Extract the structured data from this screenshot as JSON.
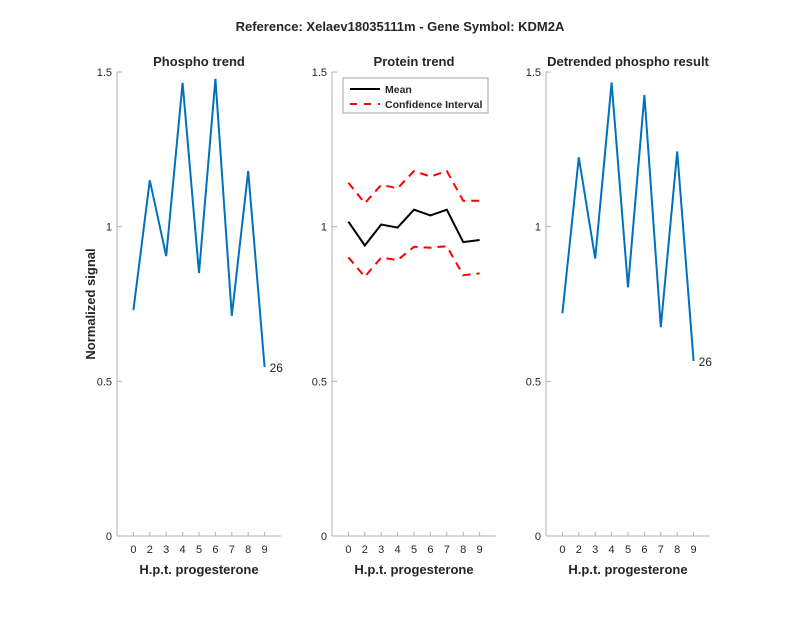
{
  "suptitle": "Reference:  Xelaev18035111m - Gene Symbol:  KDM2A",
  "colors": {
    "phospho": "#0072BD",
    "mean": "#000000",
    "ci": "#FF0000",
    "axis": "#262626",
    "spine": "#b0b0b0"
  },
  "chart_data": [
    {
      "type": "line",
      "title": "Phospho trend",
      "xlabel": "H.p.t. progesterone",
      "ylabel": "Normalized signal",
      "ylim": [
        0,
        1.5
      ],
      "yticks": [
        "0",
        "0.5",
        "1",
        "1.5"
      ],
      "categories": [
        "0",
        "2",
        "3",
        "4",
        "5",
        "6",
        "7",
        "8",
        "9"
      ],
      "series": [
        {
          "name": "Phospho",
          "values": [
            0.73,
            1.15,
            0.905,
            1.465,
            0.85,
            1.478,
            0.712,
            1.18,
            0.546
          ]
        }
      ],
      "end_label": "26"
    },
    {
      "type": "line",
      "title": "Protein trend",
      "xlabel": "H.p.t. progesterone",
      "ylabel": "",
      "ylim": [
        0,
        1.5
      ],
      "yticks": [
        "0",
        "0.5",
        "1",
        "1.5"
      ],
      "categories": [
        "0",
        "2",
        "3",
        "4",
        "5",
        "6",
        "7",
        "8",
        "9"
      ],
      "legend": {
        "placement": "top-left",
        "entries": [
          "Mean",
          "Confidence Interval"
        ]
      },
      "series": [
        {
          "name": "Mean",
          "values": [
            1.016,
            0.939,
            1.007,
            0.997,
            1.055,
            1.036,
            1.055,
            0.95,
            0.957
          ]
        },
        {
          "name": "Confidence Interval (upper)",
          "values": [
            1.142,
            1.076,
            1.135,
            1.124,
            1.18,
            1.162,
            1.18,
            1.084,
            1.084
          ]
        },
        {
          "name": "Confidence Interval (lower)",
          "values": [
            0.901,
            0.838,
            0.9,
            0.892,
            0.935,
            0.932,
            0.937,
            0.843,
            0.849
          ]
        }
      ]
    },
    {
      "type": "line",
      "title": "Detrended phospho result",
      "xlabel": "H.p.t. progesterone",
      "ylabel": "",
      "ylim": [
        0,
        1.5
      ],
      "yticks": [
        "0",
        "0.5",
        "1",
        "1.5"
      ],
      "categories": [
        "0",
        "2",
        "3",
        "4",
        "5",
        "6",
        "7",
        "8",
        "9"
      ],
      "series": [
        {
          "name": "Detrended phospho",
          "values": [
            0.72,
            1.224,
            0.897,
            1.466,
            0.804,
            1.426,
            0.675,
            1.243,
            0.566
          ]
        }
      ],
      "end_label": "26"
    }
  ]
}
